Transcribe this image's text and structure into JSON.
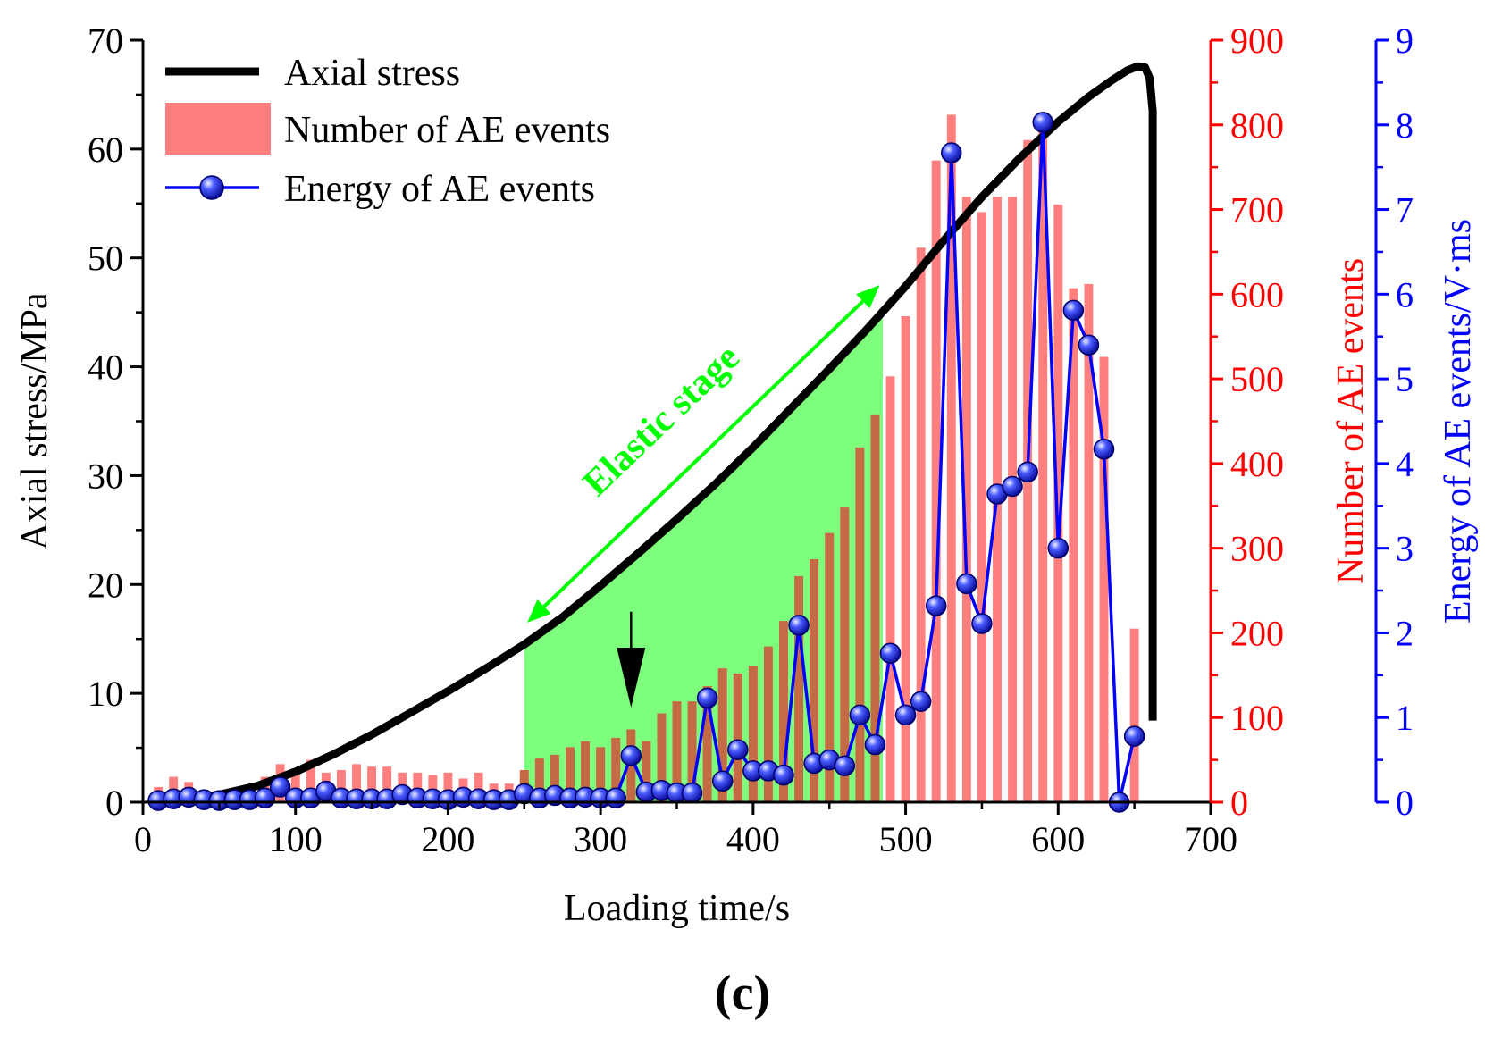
{
  "panel_label": "(c)",
  "annotations": {
    "stage_label": "Elastic stage"
  },
  "legend": {
    "items": [
      {
        "label": "Axial stress",
        "kind": "line",
        "color": "#000000"
      },
      {
        "label": "Number of AE events",
        "kind": "bar",
        "color": "#ff7f7f"
      },
      {
        "label": "Energy of AE events",
        "kind": "line-marker",
        "color": "#0000ff"
      }
    ]
  },
  "chart_data": {
    "type": "combo (bar + line)",
    "xlabel": "Loading time/s",
    "xlim": [
      0,
      700
    ],
    "xticks": [
      0,
      100,
      200,
      300,
      400,
      500,
      600,
      700
    ],
    "axes": {
      "left": {
        "label": "Axial stress/MPa",
        "lim": [
          0,
          70
        ],
        "ticks": [
          0,
          10,
          20,
          30,
          40,
          50,
          60,
          70
        ],
        "color": "#000000"
      },
      "right1": {
        "label": "Number of AE events",
        "lim": [
          0,
          900
        ],
        "ticks": [
          0,
          100,
          200,
          300,
          400,
          500,
          600,
          700,
          800,
          900
        ],
        "color": "#ff0000"
      },
      "right2": {
        "label": "Energy of AE events/V·ms",
        "lim": [
          0,
          9
        ],
        "ticks": [
          0,
          1,
          2,
          3,
          4,
          5,
          6,
          7,
          8,
          9
        ],
        "color": "#0000ff"
      }
    },
    "elastic_stage": {
      "x_start": 250,
      "x_end": 485
    },
    "arrow_marker_x": 320,
    "series": [
      {
        "name": "Axial stress",
        "axis": "left",
        "kind": "line",
        "x": [
          5,
          25,
          50,
          75,
          100,
          125,
          150,
          175,
          200,
          225,
          250,
          275,
          300,
          325,
          350,
          375,
          400,
          425,
          450,
          475,
          500,
          525,
          550,
          575,
          600,
          620,
          635,
          645,
          652,
          657,
          660,
          662,
          662,
          662
        ],
        "y": [
          0.0,
          0.2,
          0.7,
          1.5,
          2.8,
          4.4,
          6.2,
          8.2,
          10.2,
          12.3,
          14.5,
          17.0,
          19.9,
          22.9,
          26.0,
          29.2,
          32.6,
          36.2,
          39.8,
          43.5,
          47.4,
          51.6,
          55.6,
          59.2,
          62.5,
          64.8,
          66.3,
          67.2,
          67.6,
          67.5,
          66.5,
          63.5,
          30.0,
          7.5
        ]
      },
      {
        "name": "Number of AE events",
        "axis": "right1",
        "kind": "bar",
        "x": [
          10,
          20,
          30,
          40,
          50,
          60,
          70,
          80,
          90,
          100,
          110,
          120,
          130,
          140,
          150,
          160,
          170,
          180,
          190,
          200,
          210,
          220,
          230,
          240,
          250,
          260,
          270,
          280,
          290,
          300,
          310,
          320,
          330,
          340,
          350,
          360,
          370,
          380,
          390,
          400,
          410,
          420,
          430,
          440,
          450,
          460,
          470,
          480,
          490,
          500,
          510,
          520,
          530,
          540,
          550,
          560,
          570,
          580,
          590,
          600,
          610,
          620,
          630,
          640,
          650
        ],
        "y": [
          18,
          30,
          24,
          12,
          10,
          10,
          15,
          30,
          45,
          40,
          50,
          35,
          38,
          45,
          42,
          42,
          35,
          35,
          32,
          35,
          28,
          35,
          22,
          22,
          38,
          52,
          56,
          65,
          72,
          65,
          76,
          86,
          72,
          105,
          119,
          119,
          137,
          158,
          152,
          161,
          184,
          214,
          267,
          287,
          318,
          348,
          419,
          458,
          503,
          574,
          655,
          758,
          812,
          715,
          697,
          715,
          715,
          782,
          793,
          706,
          607,
          612,
          526,
          0,
          205
        ]
      },
      {
        "name": "Energy of AE events",
        "axis": "right2",
        "kind": "line-marker",
        "x": [
          10,
          20,
          30,
          40,
          50,
          60,
          70,
          80,
          90,
          100,
          110,
          120,
          130,
          140,
          150,
          160,
          170,
          180,
          190,
          200,
          210,
          220,
          230,
          240,
          250,
          260,
          270,
          280,
          290,
          300,
          310,
          320,
          330,
          340,
          350,
          360,
          370,
          380,
          390,
          400,
          410,
          420,
          430,
          440,
          450,
          460,
          470,
          480,
          490,
          500,
          510,
          520,
          530,
          540,
          550,
          560,
          570,
          580,
          590,
          600,
          610,
          620,
          630,
          640,
          650
        ],
        "y": [
          0.02,
          0.04,
          0.06,
          0.03,
          0.02,
          0.03,
          0.03,
          0.05,
          0.18,
          0.05,
          0.05,
          0.13,
          0.05,
          0.04,
          0.04,
          0.04,
          0.09,
          0.05,
          0.04,
          0.03,
          0.06,
          0.04,
          0.03,
          0.03,
          0.1,
          0.05,
          0.08,
          0.05,
          0.06,
          0.05,
          0.05,
          0.55,
          0.12,
          0.14,
          0.11,
          0.11,
          1.23,
          0.25,
          0.62,
          0.37,
          0.37,
          0.32,
          2.09,
          0.46,
          0.5,
          0.43,
          1.03,
          0.68,
          1.76,
          1.03,
          1.19,
          2.32,
          7.67,
          2.58,
          2.11,
          3.64,
          3.73,
          3.9,
          8.03,
          3.0,
          5.81,
          5.4,
          4.17,
          0.0,
          0.78
        ]
      }
    ]
  }
}
